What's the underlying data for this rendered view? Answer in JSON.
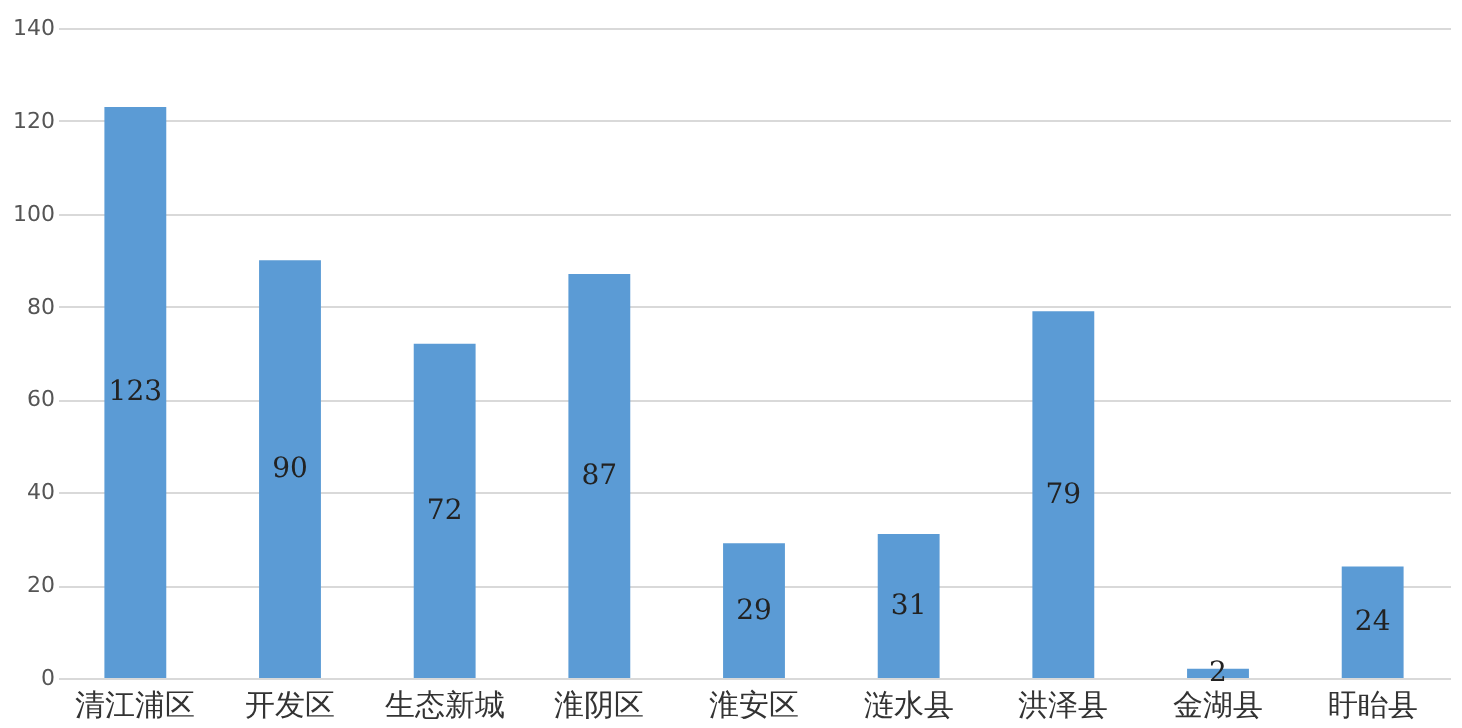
{
  "chart_data": {
    "type": "bar",
    "categories": [
      "清江浦区",
      "开发区",
      "生态新城",
      "淮阴区",
      "淮安区",
      "涟水县",
      "洪泽县",
      "金湖县",
      "盱眙县"
    ],
    "values": [
      123,
      90,
      72,
      87,
      29,
      31,
      79,
      2,
      24
    ],
    "color": "#5b9bd5",
    "ylim": [
      0,
      140
    ],
    "yticks": [
      0,
      20,
      40,
      60,
      80,
      100,
      120,
      140
    ],
    "grid": "y",
    "data_labels": true
  }
}
